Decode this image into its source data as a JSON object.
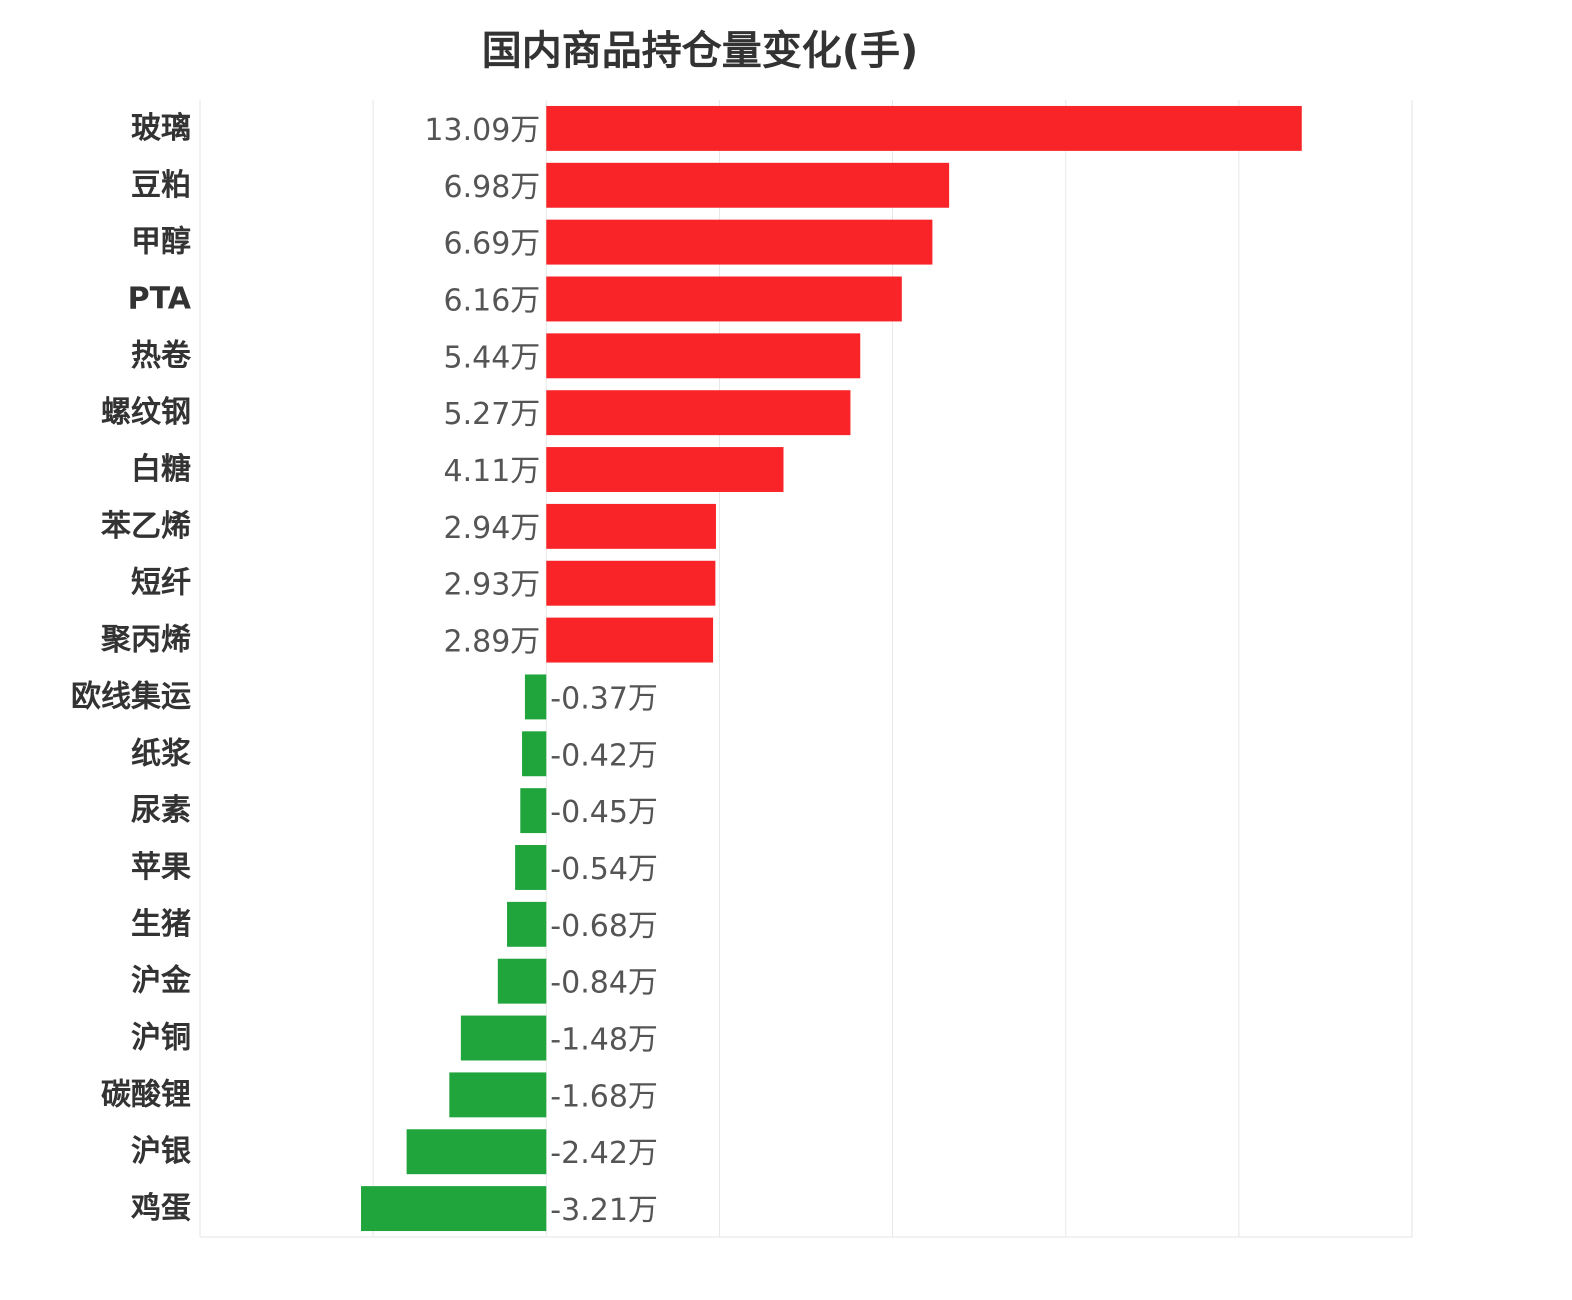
{
  "chart_data": {
    "type": "bar",
    "orientation": "horizontal",
    "title": "国内商品持仓量变化(手)",
    "unit_suffix": "万",
    "categories": [
      "玻璃",
      "豆粕",
      "甲醇",
      "PTA",
      "热卷",
      "螺纹钢",
      "白糖",
      "苯乙烯",
      "短纤",
      "聚丙烯",
      "欧线集运",
      "纸浆",
      "尿素",
      "苹果",
      "生猪",
      "沪金",
      "沪铜",
      "碳酸锂",
      "沪银",
      "鸡蛋"
    ],
    "values": [
      13.09,
      6.98,
      6.69,
      6.16,
      5.44,
      5.27,
      4.11,
      2.94,
      2.93,
      2.89,
      -0.37,
      -0.42,
      -0.45,
      -0.54,
      -0.68,
      -0.84,
      -1.48,
      -1.68,
      -2.42,
      -3.21
    ],
    "value_labels": [
      "13.09万",
      "6.98万",
      "6.69万",
      "6.16万",
      "5.44万",
      "5.27万",
      "4.11万",
      "2.94万",
      "2.93万",
      "2.89万",
      "-0.37万",
      "-0.42万",
      "-0.45万",
      "-0.54万",
      "-0.68万",
      "-0.84万",
      "-1.48万",
      "-1.68万",
      "-2.42万",
      "-3.21万"
    ],
    "xlim": [
      -6,
      15
    ],
    "grid": true,
    "colors": {
      "positive": "#f82428",
      "negative": "#20a43c"
    }
  }
}
